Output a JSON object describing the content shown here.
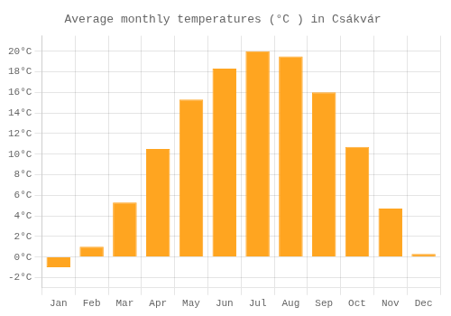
{
  "chart_data": {
    "type": "bar",
    "title": "Average monthly temperatures (°C ) in Csákvár",
    "categories": [
      "Jan",
      "Feb",
      "Mar",
      "Apr",
      "May",
      "Jun",
      "Jul",
      "Aug",
      "Sep",
      "Oct",
      "Nov",
      "Dec"
    ],
    "values": [
      -1.0,
      1.0,
      5.3,
      10.5,
      15.3,
      18.3,
      20.0,
      19.5,
      16.0,
      10.7,
      4.7,
      0.3
    ],
    "color": "#FFA520",
    "ylim": [
      -3.0,
      21.5
    ],
    "yticks": [
      {
        "value": -2,
        "label": "-2°C"
      },
      {
        "value": 0,
        "label": "0°C"
      },
      {
        "value": 2,
        "label": "2°C"
      },
      {
        "value": 4,
        "label": "4°C"
      },
      {
        "value": 6,
        "label": "6°C"
      },
      {
        "value": 8,
        "label": "8°C"
      },
      {
        "value": 10,
        "label": "10°C"
      },
      {
        "value": 12,
        "label": "12°C"
      },
      {
        "value": 14,
        "label": "14°C"
      },
      {
        "value": 16,
        "label": "16°C"
      },
      {
        "value": 18,
        "label": "18°C"
      },
      {
        "value": 20,
        "label": "20°C"
      }
    ],
    "grid": true
  }
}
